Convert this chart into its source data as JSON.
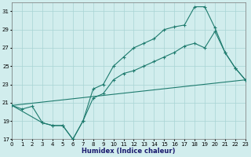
{
  "xlabel": "Humidex (Indice chaleur)",
  "bg_color": "#d1eded",
  "grid_color": "#a8d4d4",
  "line_color": "#1e7b6e",
  "xlim": [
    0,
    23
  ],
  "ylim": [
    17,
    32
  ],
  "yticks": [
    17,
    19,
    21,
    23,
    25,
    27,
    29,
    31
  ],
  "xticks": [
    0,
    1,
    2,
    3,
    4,
    5,
    6,
    7,
    8,
    9,
    10,
    11,
    12,
    13,
    14,
    15,
    16,
    17,
    18,
    19,
    20,
    21,
    22,
    23
  ],
  "line1_x": [
    0,
    1,
    2,
    3,
    4,
    5,
    6,
    7,
    8,
    9,
    10,
    11,
    12,
    13,
    14,
    15,
    16,
    17,
    18,
    19,
    20,
    21,
    22,
    23
  ],
  "line1_y": [
    20.7,
    20.3,
    20.6,
    18.8,
    18.5,
    18.5,
    17.0,
    19.0,
    22.5,
    23.0,
    25.0,
    26.0,
    27.0,
    27.5,
    28.0,
    29.0,
    29.3,
    29.5,
    31.5,
    31.5,
    29.2,
    26.5,
    24.8,
    23.5
  ],
  "line2_x": [
    0,
    3,
    4,
    5,
    6,
    7,
    8,
    9,
    10,
    11,
    12,
    13,
    14,
    15,
    16,
    17,
    18,
    19,
    20,
    21,
    22,
    23
  ],
  "line2_y": [
    20.7,
    18.8,
    18.5,
    18.5,
    17.0,
    19.0,
    21.5,
    22.0,
    23.5,
    24.2,
    24.5,
    25.0,
    25.5,
    26.0,
    26.5,
    27.2,
    27.5,
    27.0,
    28.8,
    26.5,
    24.8,
    23.5
  ],
  "line3_x": [
    0,
    23
  ],
  "line3_y": [
    20.7,
    23.5
  ]
}
